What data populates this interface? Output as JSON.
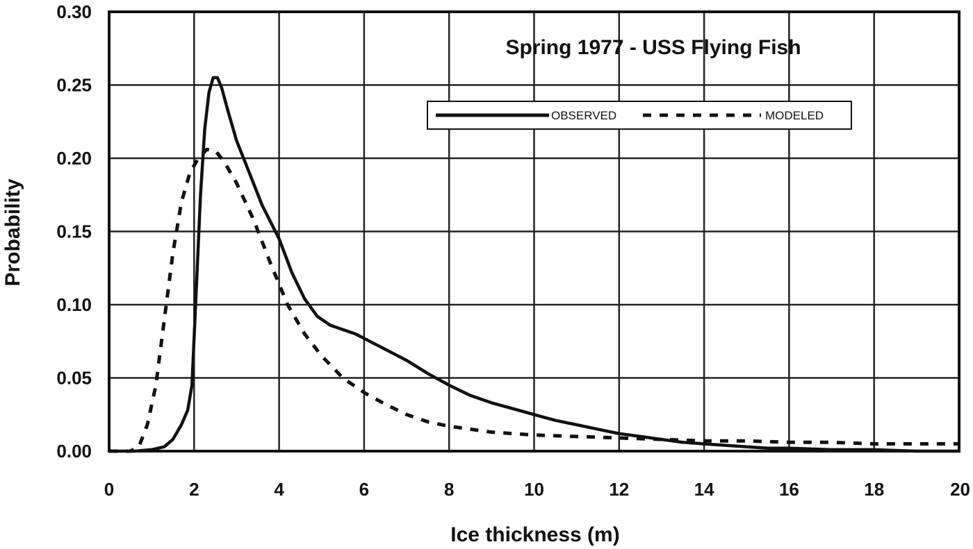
{
  "chart_data": {
    "type": "line",
    "title": "Spring 1977 - USS Flying Fish",
    "xlabel": "Ice thickness (m)",
    "ylabel": "Probability",
    "xlim": [
      0,
      20
    ],
    "ylim": [
      0,
      0.3
    ],
    "x_ticks": [
      0,
      2,
      4,
      6,
      8,
      10,
      12,
      14,
      16,
      18,
      20
    ],
    "x_tick_labels": [
      "0",
      "2",
      "4",
      "6",
      "8",
      "10",
      "12",
      "14",
      "16",
      "18",
      "20"
    ],
    "y_ticks": [
      0,
      0.05,
      0.1,
      0.15,
      0.2,
      0.25,
      0.3
    ],
    "y_tick_labels": [
      "0.00",
      "0.05",
      "0.10",
      "0.15",
      "0.20",
      "0.25",
      "0.30"
    ],
    "grid": true,
    "legend": "top-right",
    "series": [
      {
        "name": "OBSERVED",
        "style": "solid",
        "color": "#111111",
        "x": [
          0,
          0.6,
          1.0,
          1.3,
          1.5,
          1.7,
          1.85,
          1.95,
          2.05,
          2.15,
          2.25,
          2.35,
          2.45,
          2.55,
          2.65,
          2.8,
          3.0,
          3.3,
          3.6,
          4.0,
          4.3,
          4.6,
          4.9,
          5.2,
          5.5,
          5.8,
          6.2,
          6.6,
          7.0,
          7.5,
          8.0,
          8.5,
          9.0,
          9.5,
          10.0,
          10.5,
          11.0,
          11.5,
          12.0,
          12.5,
          13.0,
          13.5,
          14.0,
          14.5,
          15.0,
          15.5,
          16.0,
          17.0,
          18.0,
          19.0,
          20.0
        ],
        "y": [
          0.0,
          0.0,
          0.001,
          0.003,
          0.008,
          0.018,
          0.028,
          0.045,
          0.11,
          0.175,
          0.22,
          0.245,
          0.255,
          0.255,
          0.248,
          0.232,
          0.212,
          0.19,
          0.168,
          0.145,
          0.122,
          0.104,
          0.092,
          0.086,
          0.083,
          0.08,
          0.074,
          0.068,
          0.062,
          0.053,
          0.045,
          0.038,
          0.033,
          0.029,
          0.025,
          0.021,
          0.018,
          0.015,
          0.012,
          0.01,
          0.008,
          0.006,
          0.005,
          0.004,
          0.003,
          0.002,
          0.002,
          0.001,
          0.001,
          0.0,
          0.0
        ]
      },
      {
        "name": "MODELED",
        "style": "dashed",
        "color": "#111111",
        "x": [
          0,
          0.5,
          0.7,
          0.9,
          1.1,
          1.3,
          1.5,
          1.7,
          1.9,
          2.1,
          2.3,
          2.5,
          2.7,
          3.0,
          3.4,
          3.8,
          4.2,
          4.6,
          5.0,
          5.5,
          6.0,
          6.5,
          7.0,
          7.5,
          8.0,
          9.0,
          10.0,
          11.0,
          12.0,
          13.0,
          14.0,
          15.0,
          16.0,
          17.0,
          18.0,
          19.0,
          20.0
        ],
        "y": [
          0.0,
          0.0,
          0.003,
          0.018,
          0.045,
          0.09,
          0.135,
          0.17,
          0.19,
          0.2,
          0.206,
          0.205,
          0.198,
          0.183,
          0.158,
          0.128,
          0.1,
          0.08,
          0.065,
          0.05,
          0.04,
          0.032,
          0.025,
          0.02,
          0.017,
          0.013,
          0.011,
          0.01,
          0.009,
          0.008,
          0.007,
          0.007,
          0.006,
          0.006,
          0.005,
          0.005,
          0.005
        ]
      }
    ]
  }
}
